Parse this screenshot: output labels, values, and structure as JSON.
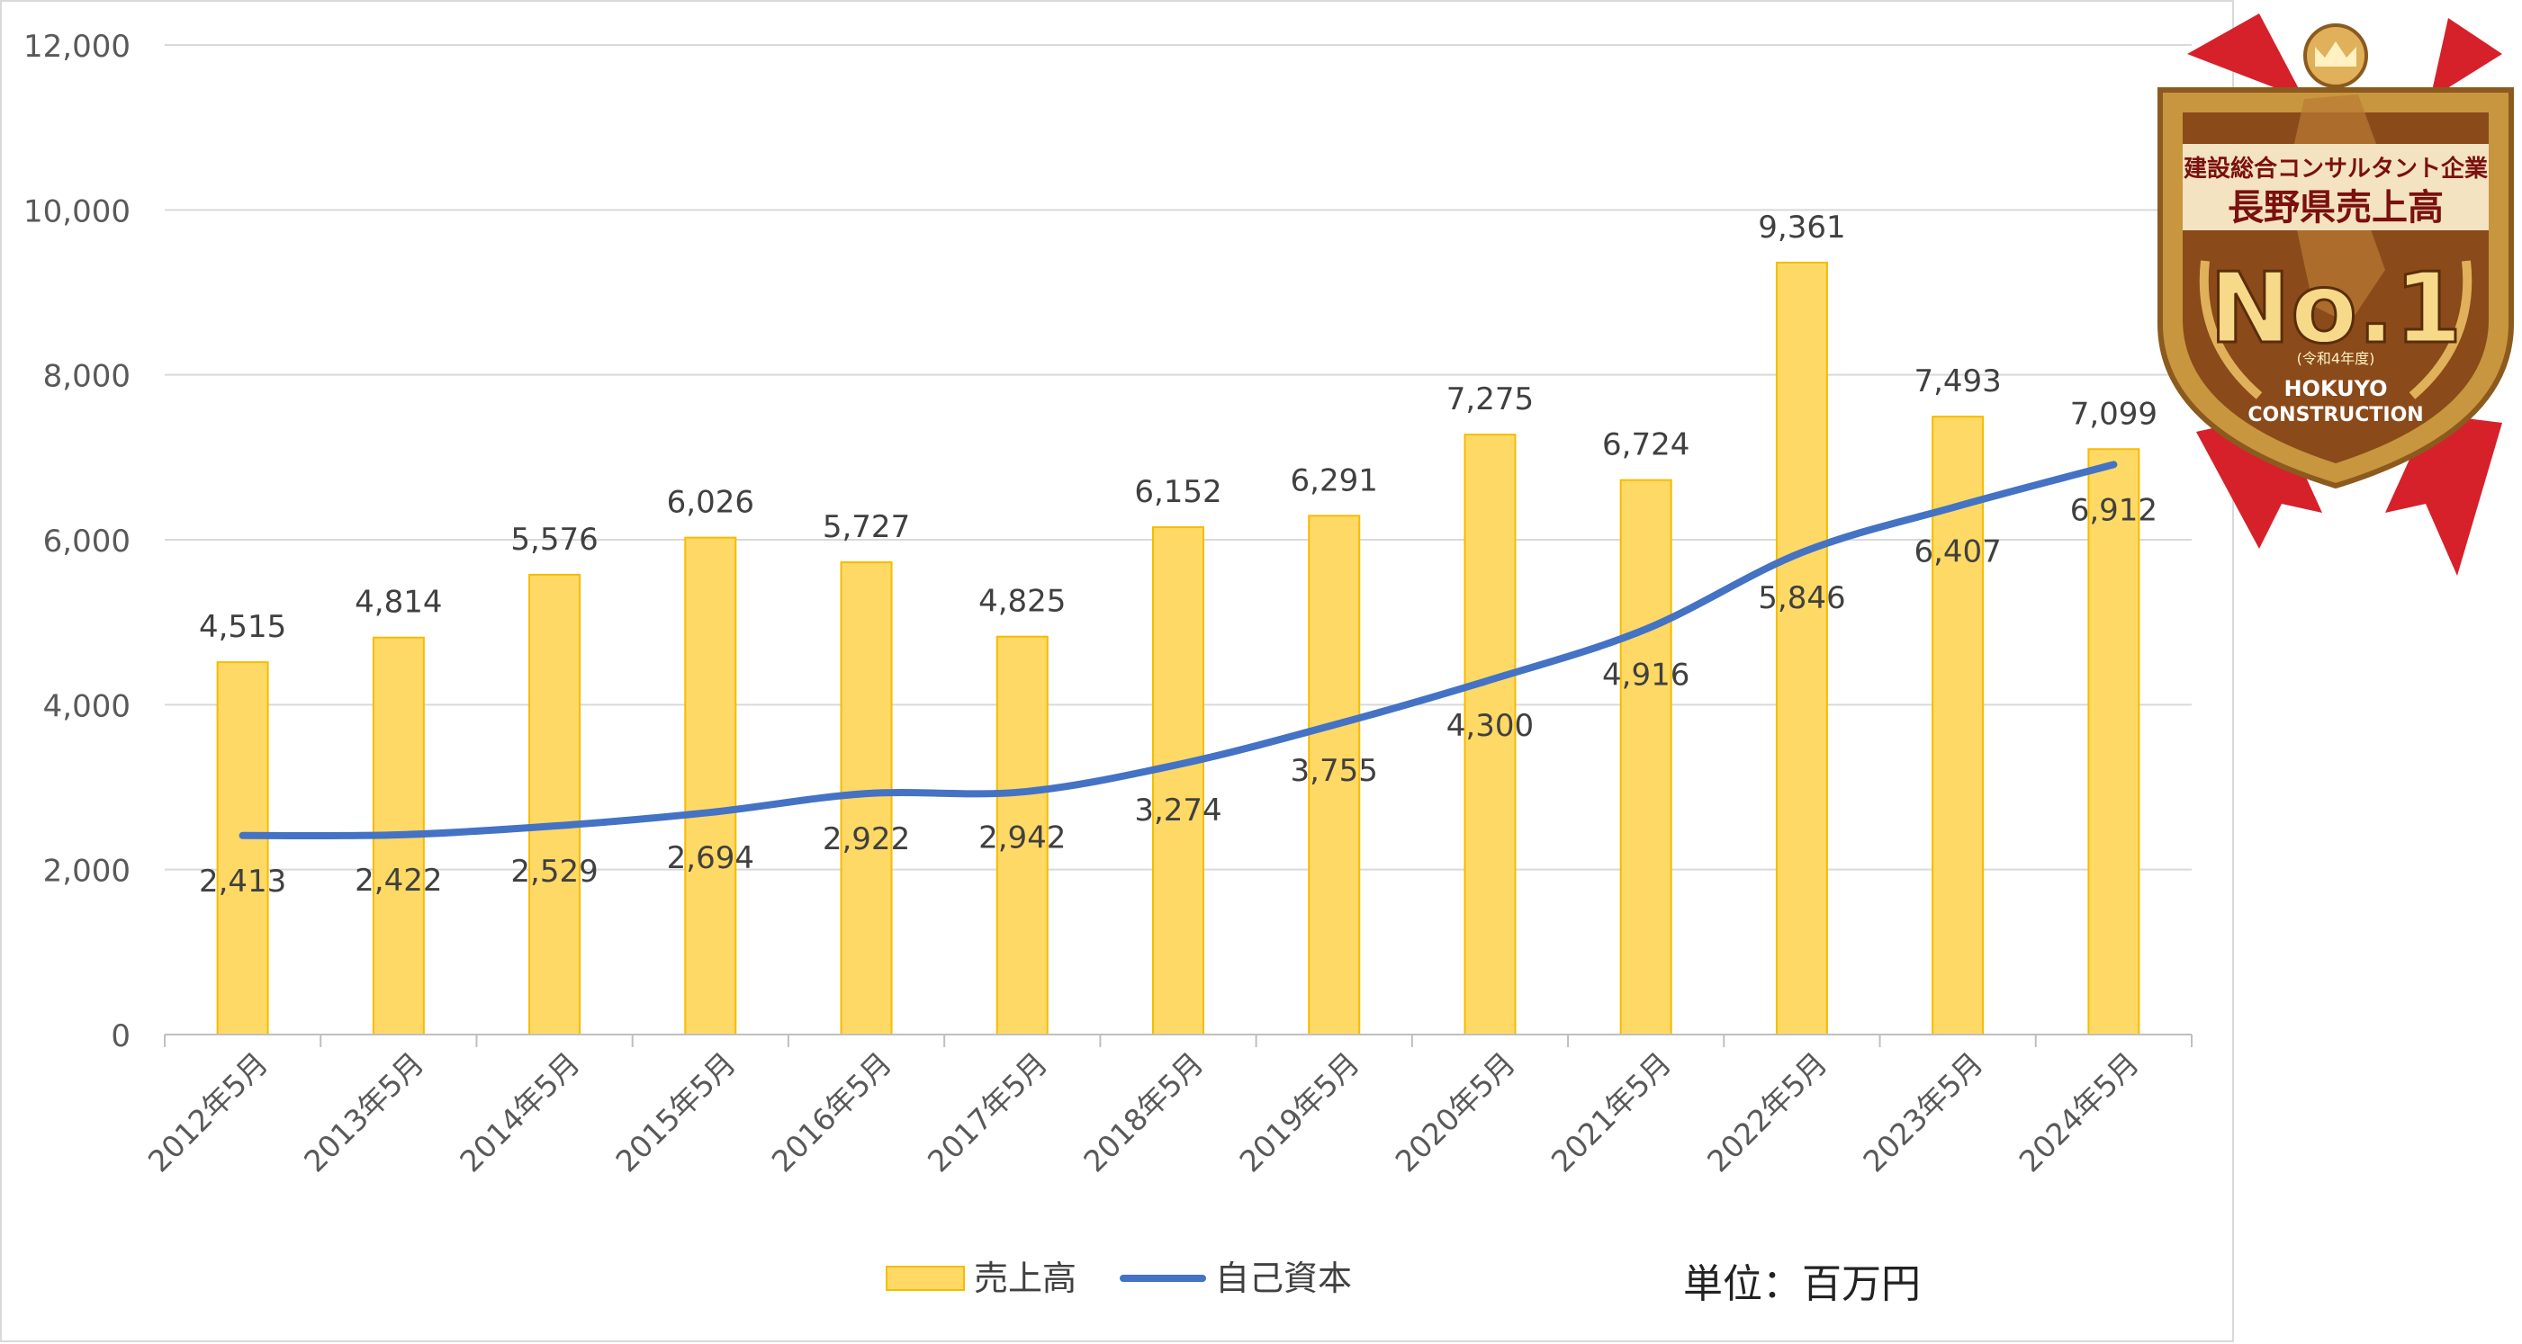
{
  "chart_data": {
    "type": "bar",
    "categories": [
      "2012年5月",
      "2013年5月",
      "2014年5月",
      "2015年5月",
      "2016年5月",
      "2017年5月",
      "2018年5月",
      "2019年5月",
      "2020年5月",
      "2021年5月",
      "2022年5月",
      "2023年5月",
      "2024年5月"
    ],
    "series": [
      {
        "name": "売上高",
        "type": "bar",
        "color": "#FFD966",
        "stroke": "#F5BC00",
        "values": [
          4515,
          4814,
          5576,
          6026,
          5727,
          4825,
          6152,
          6291,
          7275,
          6724,
          9361,
          7493,
          7099
        ]
      },
      {
        "name": "自己資本",
        "type": "line",
        "color": "#4472C4",
        "values": [
          2413,
          2422,
          2529,
          2694,
          2922,
          2942,
          3274,
          3755,
          4300,
          4916,
          5846,
          6407,
          6912
        ]
      }
    ],
    "ylim": [
      0,
      12000
    ],
    "yticks": [
      0,
      2000,
      4000,
      6000,
      8000,
      10000,
      12000
    ],
    "grid": true,
    "legend": "bottom-center",
    "unit_note": "単位：百万円"
  },
  "badge": {
    "line1": "建設総合コンサルタント企業",
    "line2": "長野県売上高",
    "rank": "No.1",
    "year": "(令和4年度)",
    "company1": "HOKUYO",
    "company2": "CONSTRUCTION",
    "colors": {
      "ribbon": "#D6202A",
      "gold": "#C8963E",
      "inner": "#8A4A1A"
    }
  }
}
